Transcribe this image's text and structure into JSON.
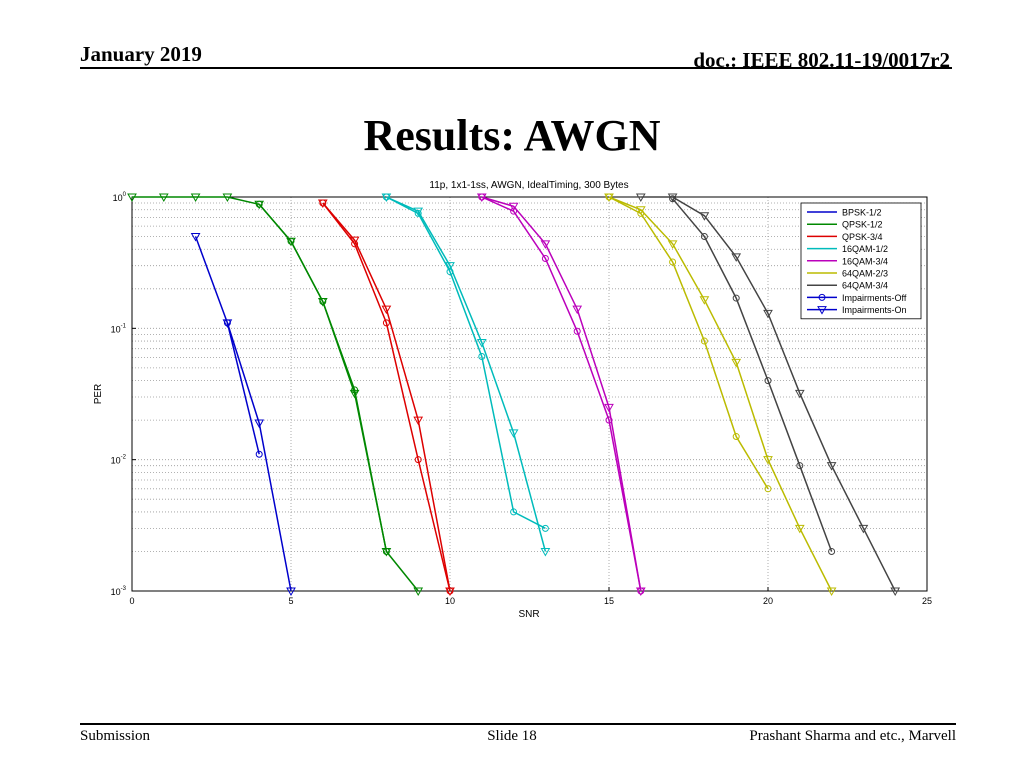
{
  "header": {
    "left": "January 2019",
    "right": "doc.: IEEE 802.11-19/0017r2"
  },
  "slide": {
    "title": "Results: AWGN"
  },
  "footer": {
    "left": "Submission",
    "center": "Slide 18",
    "right": "Prashant Sharma and etc., Marvell"
  },
  "chart_data": {
    "type": "line",
    "title": "11p, 1x1-1ss, AWGN, IdealTiming, 300 Bytes",
    "xlabel": "SNR",
    "ylabel": "PER",
    "xlim": [
      0,
      25
    ],
    "ylim": [
      0.001,
      1
    ],
    "yscale": "log",
    "grid": true,
    "legend_position": "top-right",
    "x_ticks": [
      {
        "value": 0,
        "label": "0"
      },
      {
        "value": 5,
        "label": "5"
      },
      {
        "value": 10,
        "label": "10"
      },
      {
        "value": 15,
        "label": "15"
      },
      {
        "value": 20,
        "label": "20"
      },
      {
        "value": 25,
        "label": "25"
      }
    ],
    "y_ticks": [
      {
        "value": 1,
        "base": "10",
        "exp": "0"
      },
      {
        "value": 0.1,
        "base": "10",
        "exp": "-1"
      },
      {
        "value": 0.01,
        "base": "10",
        "exp": "-2"
      },
      {
        "value": 0.001,
        "base": "10",
        "exp": "-3"
      }
    ],
    "legend": [
      {
        "label": "BPSK-1/2",
        "color": "#0000cc",
        "marker": "none"
      },
      {
        "label": "QPSK-1/2",
        "color": "#008800",
        "marker": "none"
      },
      {
        "label": "QPSK-3/4",
        "color": "#dd0000",
        "marker": "none"
      },
      {
        "label": "16QAM-1/2",
        "color": "#00bbbb",
        "marker": "none"
      },
      {
        "label": "16QAM-3/4",
        "color": "#bb00bb",
        "marker": "none"
      },
      {
        "label": "64QAM-2/3",
        "color": "#bbbb00",
        "marker": "none"
      },
      {
        "label": "64QAM-3/4",
        "color": "#444444",
        "marker": "none"
      },
      {
        "label": "Impairments-Off",
        "color": "#0000cc",
        "marker": "circle"
      },
      {
        "label": "Impairments-On",
        "color": "#0000cc",
        "marker": "triangle"
      }
    ],
    "series": [
      {
        "mod": "BPSK-1/2",
        "impairments": "Off",
        "color": "#0000cc",
        "marker": "circle",
        "x": [
          3,
          4
        ],
        "y": [
          0.11,
          0.011
        ]
      },
      {
        "mod": "BPSK-1/2",
        "impairments": "On",
        "color": "#0000cc",
        "marker": "triangle",
        "x": [
          2,
          3,
          4,
          5
        ],
        "y": [
          0.5,
          0.11,
          0.019,
          0.001
        ]
      },
      {
        "mod": "QPSK-1/2",
        "impairments": "Off",
        "color": "#008800",
        "marker": "circle",
        "x": [
          4,
          5,
          6,
          7,
          8
        ],
        "y": [
          0.88,
          0.46,
          0.16,
          0.034,
          0.002
        ]
      },
      {
        "mod": "QPSK-1/2",
        "impairments": "On",
        "color": "#008800",
        "marker": "triangle",
        "x": [
          0,
          1,
          2,
          3,
          4,
          5,
          6,
          7,
          8,
          9
        ],
        "y": [
          1,
          1,
          1,
          1,
          0.88,
          0.46,
          0.16,
          0.032,
          0.002,
          0.001
        ]
      },
      {
        "mod": "QPSK-3/4",
        "impairments": "Off",
        "color": "#dd0000",
        "marker": "circle",
        "x": [
          6,
          7,
          8,
          9,
          10
        ],
        "y": [
          0.9,
          0.44,
          0.11,
          0.01,
          0.001
        ]
      },
      {
        "mod": "QPSK-3/4",
        "impairments": "On",
        "color": "#dd0000",
        "marker": "triangle",
        "x": [
          6,
          7,
          8,
          9,
          10
        ],
        "y": [
          0.9,
          0.47,
          0.14,
          0.02,
          0.001
        ]
      },
      {
        "mod": "16QAM-1/2",
        "impairments": "Off",
        "color": "#00bbbb",
        "marker": "circle",
        "x": [
          8,
          9,
          10,
          11,
          12,
          13
        ],
        "y": [
          1,
          0.75,
          0.27,
          0.061,
          0.004,
          0.003
        ]
      },
      {
        "mod": "16QAM-1/2",
        "impairments": "On",
        "color": "#00bbbb",
        "marker": "triangle",
        "x": [
          8,
          9,
          10,
          11,
          12,
          13
        ],
        "y": [
          1,
          0.78,
          0.3,
          0.078,
          0.016,
          0.002
        ]
      },
      {
        "mod": "16QAM-3/4",
        "impairments": "Off",
        "color": "#bb00bb",
        "marker": "circle",
        "x": [
          11,
          12,
          13,
          14,
          15,
          16
        ],
        "y": [
          1,
          0.78,
          0.34,
          0.095,
          0.02,
          0.001
        ]
      },
      {
        "mod": "16QAM-3/4",
        "impairments": "On",
        "color": "#bb00bb",
        "marker": "triangle",
        "x": [
          11,
          12,
          13,
          14,
          15,
          16
        ],
        "y": [
          1,
          0.85,
          0.44,
          0.14,
          0.025,
          0.001
        ]
      },
      {
        "mod": "64QAM-2/3",
        "impairments": "Off",
        "color": "#bbbb00",
        "marker": "circle",
        "x": [
          15,
          16,
          17,
          18,
          19,
          20
        ],
        "y": [
          1,
          0.75,
          0.32,
          0.08,
          0.015,
          0.006
        ]
      },
      {
        "mod": "64QAM-2/3",
        "impairments": "On",
        "color": "#bbbb00",
        "marker": "triangle",
        "x": [
          15,
          16,
          17,
          18,
          19,
          20,
          21,
          22
        ],
        "y": [
          1,
          0.8,
          0.44,
          0.165,
          0.055,
          0.01,
          0.003,
          0.001
        ]
      },
      {
        "mod": "64QAM-3/4",
        "impairments": "Off",
        "color": "#444444",
        "marker": "circle",
        "x": [
          17,
          18,
          19,
          20,
          21,
          22
        ],
        "y": [
          0.97,
          0.5,
          0.17,
          0.04,
          0.009,
          0.002
        ]
      },
      {
        "mod": "64QAM-3/4",
        "impairments": "On",
        "color": "#444444",
        "marker": "triangle",
        "x": [
          16,
          17,
          18,
          19,
          20,
          21,
          22,
          23,
          24
        ],
        "y": [
          1,
          1,
          0.72,
          0.35,
          0.13,
          0.032,
          0.009,
          0.003,
          0.001
        ]
      }
    ]
  }
}
